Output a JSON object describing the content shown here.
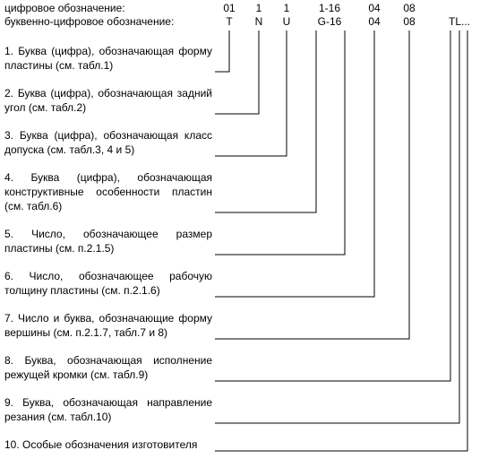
{
  "header": {
    "numeric_label": "цифровое обозначение:",
    "alnum_label": "буквенно-цифровое обозначение:"
  },
  "numeric_codes": [
    "01",
    "1",
    "1",
    "1-16",
    "04",
    "08"
  ],
  "alnum_codes": [
    "T",
    "N",
    "U",
    "G-16",
    "04",
    "08",
    "TL..."
  ],
  "items": [
    {
      "lines": [
        "1. Буква (цифра), обозначающая форму",
        "пластины (см. табл.1)"
      ]
    },
    {
      "lines": [
        "2. Буква (цифра), обозначающая задний",
        "угол (см. табл.2)"
      ]
    },
    {
      "lines": [
        "3. Буква (цифра), обозначающая класс",
        "допуска (см. табл.3, 4 и 5)"
      ]
    },
    {
      "lines": [
        "4. Буква (цифра), обозначающая",
        "конструктивные особенности пластин",
        "(см. табл.6)"
      ]
    },
    {
      "lines": [
        "5. Число, обозначающее размер",
        "пластины (см. п.2.1.5)"
      ]
    },
    {
      "lines": [
        "6. Число, обозначающее рабочую",
        "толщину пластины (см. п.2.1.6)"
      ]
    },
    {
      "lines": [
        "7. Число и буква, обозначающие форму",
        "вершины (см. п.2.1.7, табл.7 и 8)"
      ]
    },
    {
      "lines": [
        "8. Буква, обозначающая исполнение",
        "режущей кромки (см. табл.9)"
      ]
    },
    {
      "lines": [
        "9. Буква, обозначающая направление",
        "резания (см. табл.10)"
      ]
    },
    {
      "lines": [
        "10. Особые обозначения изготовителя"
      ]
    }
  ]
}
